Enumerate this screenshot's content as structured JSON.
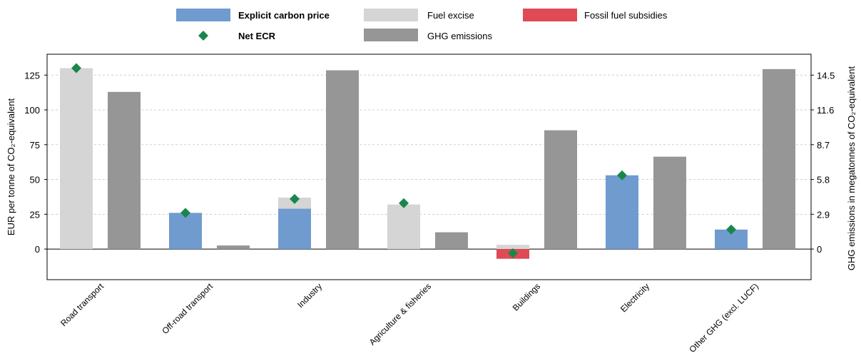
{
  "chart_data": {
    "type": "bar",
    "categories": [
      "Road transport",
      "Off-road transport",
      "Industry",
      "Agriculture & fisheries",
      "Buildings",
      "Electricity",
      "Other GHG (excl. LUCF)"
    ],
    "ylabel": "EUR per tonne of CO₂-equivalent",
    "y2label": "GHG emissions in megatonnes of CO₂-equivalent",
    "ylim": [
      -22,
      140
    ],
    "yticks": [
      "125",
      "100",
      "75",
      "50",
      "25",
      "0"
    ],
    "y2lim": [
      -2.55,
      16.24
    ],
    "y2ticks": [
      "14.5",
      "11.6",
      "8.7",
      "5.8",
      "2.9",
      "0"
    ],
    "series": [
      {
        "name": "Explicit carbon price",
        "color": "#6f9bcf",
        "values": [
          0,
          26,
          29,
          0,
          0,
          53,
          14
        ]
      },
      {
        "name": "Fuel excise",
        "color": "#d5d5d5",
        "values": [
          130,
          0,
          8,
          32,
          3,
          0,
          0
        ]
      },
      {
        "name": "Fossil fuel subsidies",
        "color": "#e04a55",
        "values": [
          0,
          0,
          0,
          0,
          -7,
          0,
          0
        ]
      },
      {
        "name": "Net ECR",
        "color": "#19874a",
        "marker": "diamond",
        "values": [
          130,
          26,
          36,
          33,
          -3,
          53,
          14
        ]
      },
      {
        "name": "GHG emissions",
        "color": "#969696",
        "axis": "secondary",
        "values": [
          13.1,
          0.3,
          14.9,
          1.4,
          9.9,
          7.7,
          15.0
        ]
      }
    ],
    "legend": {
      "position": "top",
      "items": [
        {
          "label": "Explicit carbon price",
          "bold": true,
          "kind": "bar",
          "color": "#6f9bcf"
        },
        {
          "label": "Fuel excise",
          "bold": false,
          "kind": "bar",
          "color": "#d5d5d5"
        },
        {
          "label": "Fossil fuel subsidies",
          "bold": false,
          "kind": "bar",
          "color": "#e04a55"
        },
        {
          "label": "Net ECR",
          "bold": true,
          "kind": "diamond",
          "color": "#19874a"
        },
        {
          "label": "GHG emissions",
          "bold": false,
          "kind": "bar",
          "color": "#969696"
        }
      ]
    },
    "grid": "horizontal dashed"
  }
}
